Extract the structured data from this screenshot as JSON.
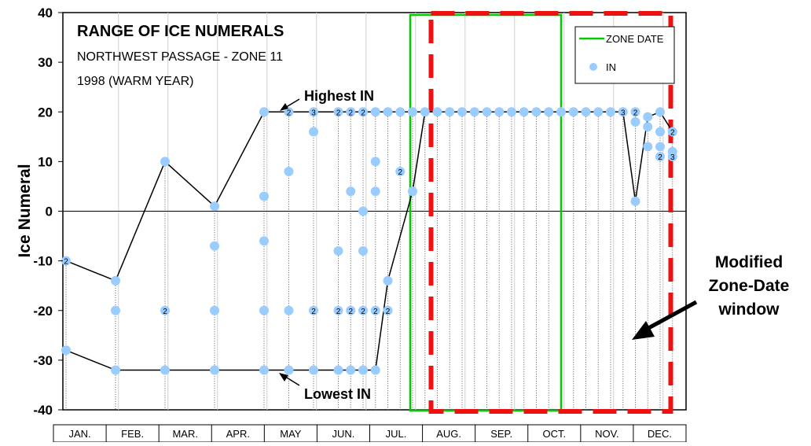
{
  "chart_data": {
    "type": "scatter",
    "title": "RANGE OF ICE NUMERALS",
    "subtitle_1": "NORTHWEST PASSAGE - ZONE 11",
    "subtitle_2": "1998 (WARM YEAR)",
    "ylabel": "Ice Numeral",
    "ylim": [
      -40,
      40
    ],
    "y_ticks": [
      "40",
      "30",
      "20",
      "10",
      "0",
      "-10",
      "-20",
      "-30",
      "-40"
    ],
    "months": [
      "JAN.",
      "FEB.",
      "MAR.",
      "APR.",
      "MAY",
      "JUN.",
      "JUL.",
      "AUG.",
      "SEP.",
      "OCT.",
      "NOV.",
      "DEC."
    ],
    "grid": "vertical lines at month boundaries",
    "legend": {
      "position": "top-right",
      "items": [
        {
          "label": "ZONE DATE",
          "color": "#00cc00",
          "marker": "line"
        },
        {
          "label": "IN",
          "color": "#99ccff",
          "marker": "dot"
        }
      ]
    },
    "series": [
      {
        "name": "IN",
        "color": "#99ccff",
        "points": [
          {
            "x": 0.0,
            "y": -10,
            "label": "2"
          },
          {
            "x": 0.0,
            "y": -28
          },
          {
            "x": 1.0,
            "y": -14
          },
          {
            "x": 1.0,
            "y": -20
          },
          {
            "x": 1.0,
            "y": -32
          },
          {
            "x": 2.0,
            "y": 10
          },
          {
            "x": 2.0,
            "y": -20,
            "label": "2"
          },
          {
            "x": 2.0,
            "y": -32
          },
          {
            "x": 3.0,
            "y": 1
          },
          {
            "x": 3.0,
            "y": -7
          },
          {
            "x": 3.0,
            "y": -20
          },
          {
            "x": 3.0,
            "y": -32
          },
          {
            "x": 4.0,
            "y": 20
          },
          {
            "x": 4.0,
            "y": 3
          },
          {
            "x": 4.0,
            "y": -6
          },
          {
            "x": 4.0,
            "y": -20
          },
          {
            "x": 4.0,
            "y": -32
          },
          {
            "x": 4.5,
            "y": 20,
            "label": "2"
          },
          {
            "x": 4.5,
            "y": 8
          },
          {
            "x": 4.5,
            "y": -20
          },
          {
            "x": 4.5,
            "y": -32
          },
          {
            "x": 5.0,
            "y": 20,
            "label": "3"
          },
          {
            "x": 5.0,
            "y": 16
          },
          {
            "x": 5.0,
            "y": -20,
            "label": "2"
          },
          {
            "x": 5.0,
            "y": -32
          },
          {
            "x": 5.5,
            "y": 20,
            "label": "2"
          },
          {
            "x": 5.5,
            "y": -8
          },
          {
            "x": 5.5,
            "y": -20,
            "label": "2"
          },
          {
            "x": 5.5,
            "y": -32
          },
          {
            "x": 5.75,
            "y": 20,
            "label": "2"
          },
          {
            "x": 5.75,
            "y": 4
          },
          {
            "x": 5.75,
            "y": -20,
            "label": "2"
          },
          {
            "x": 5.75,
            "y": -32
          },
          {
            "x": 6.0,
            "y": 20,
            "label": "2"
          },
          {
            "x": 6.0,
            "y": 0
          },
          {
            "x": 6.0,
            "y": -8
          },
          {
            "x": 6.0,
            "y": -20,
            "label": "2"
          },
          {
            "x": 6.0,
            "y": -32
          },
          {
            "x": 6.25,
            "y": 20
          },
          {
            "x": 6.25,
            "y": 10
          },
          {
            "x": 6.25,
            "y": 4
          },
          {
            "x": 6.25,
            "y": -20,
            "label": "2"
          },
          {
            "x": 6.25,
            "y": -32
          },
          {
            "x": 6.5,
            "y": 20
          },
          {
            "x": 6.5,
            "y": -20,
            "label": "2"
          },
          {
            "x": 6.5,
            "y": -14
          },
          {
            "x": 6.75,
            "y": 20
          },
          {
            "x": 6.75,
            "y": 8,
            "label": "2"
          },
          {
            "x": 7.0,
            "y": 20
          },
          {
            "x": 7.0,
            "y": 4
          },
          {
            "x": 7.25,
            "y": 20
          },
          {
            "x": 7.5,
            "y": 20
          },
          {
            "x": 7.75,
            "y": 20
          },
          {
            "x": 8.0,
            "y": 20
          },
          {
            "x": 8.25,
            "y": 20
          },
          {
            "x": 8.5,
            "y": 20
          },
          {
            "x": 8.75,
            "y": 20
          },
          {
            "x": 9.0,
            "y": 20
          },
          {
            "x": 9.25,
            "y": 20
          },
          {
            "x": 9.5,
            "y": 20
          },
          {
            "x": 9.75,
            "y": 20
          },
          {
            "x": 10.0,
            "y": 20
          },
          {
            "x": 10.25,
            "y": 20
          },
          {
            "x": 10.5,
            "y": 20
          },
          {
            "x": 10.75,
            "y": 20
          },
          {
            "x": 11.0,
            "y": 20
          },
          {
            "x": 11.25,
            "y": 20,
            "label": "3"
          },
          {
            "x": 11.5,
            "y": 20,
            "label": "2"
          },
          {
            "x": 11.5,
            "y": 18
          },
          {
            "x": 11.5,
            "y": 2
          },
          {
            "x": 11.75,
            "y": 19
          },
          {
            "x": 11.75,
            "y": 17
          },
          {
            "x": 11.75,
            "y": 13
          },
          {
            "x": 12.0,
            "y": 20
          },
          {
            "x": 12.0,
            "y": 16
          },
          {
            "x": 12.0,
            "y": 13
          },
          {
            "x": 12.0,
            "y": 11,
            "label": "2"
          },
          {
            "x": 12.25,
            "y": 16,
            "label": "2"
          },
          {
            "x": 12.25,
            "y": 12
          },
          {
            "x": 12.25,
            "y": 11,
            "label": "3"
          }
        ]
      },
      {
        "name": "Highest IN",
        "type": "line",
        "color": "#000000",
        "points": [
          [
            0.0,
            -10
          ],
          [
            1.0,
            -14
          ],
          [
            2.0,
            10
          ],
          [
            3.0,
            1
          ],
          [
            4.0,
            20
          ],
          [
            7.25,
            20
          ],
          [
            11.25,
            20
          ],
          [
            11.5,
            2
          ],
          [
            11.75,
            19
          ],
          [
            12.0,
            20
          ],
          [
            12.25,
            16
          ]
        ]
      },
      {
        "name": "Lowest IN",
        "type": "line",
        "color": "#000000",
        "points": [
          [
            0.0,
            -28
          ],
          [
            1.0,
            -32
          ],
          [
            6.25,
            -32
          ],
          [
            6.5,
            -14
          ],
          [
            7.0,
            4
          ],
          [
            7.25,
            20
          ]
        ]
      }
    ],
    "annotations": [
      {
        "text": "Highest IN",
        "x": 5.5,
        "y": 23
      },
      {
        "text": "Lowest IN",
        "x": 6.0,
        "y": -37
      },
      {
        "text": "Modified",
        "side": "right"
      },
      {
        "text": "Zone-Date",
        "side": "right"
      },
      {
        "text": "window",
        "side": "right"
      }
    ],
    "zone_date_window": {
      "x_start": 7.0,
      "x_end": 10.0,
      "color": "#00cc00"
    },
    "modified_window": {
      "x_start": 7.5,
      "x_end": 12.5,
      "color": "#ee1111"
    }
  }
}
